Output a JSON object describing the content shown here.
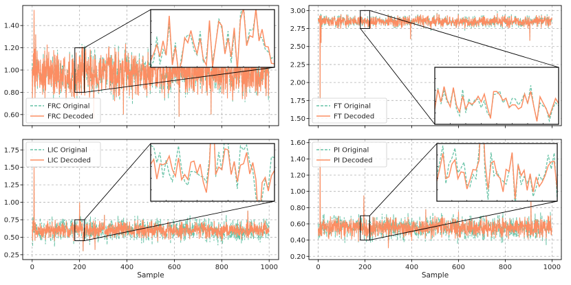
{
  "chart_data": [
    {
      "type": "line",
      "panel": "top-left",
      "xlabel": "",
      "ylabel": "",
      "xlim": [
        -40,
        1040
      ],
      "ylim": [
        0.5,
        1.58
      ],
      "yticks": [
        0.6,
        0.8,
        1.0,
        1.2,
        1.4
      ],
      "xticks": [
        0,
        200,
        400,
        600,
        800,
        1000
      ],
      "x_tick_labels_shown": false,
      "grid": true,
      "legend_position": "lower-left",
      "baseline": 0.97,
      "decoded_spread": 0.1,
      "original_spread": 0.06,
      "spikes": [
        [
          8,
          1.54
        ],
        [
          12,
          0.75
        ],
        [
          15,
          1.32
        ],
        [
          260,
          0.56
        ],
        [
          385,
          0.6
        ],
        [
          620,
          0.58
        ],
        [
          755,
          0.6
        ],
        [
          905,
          0.76
        ]
      ],
      "zoom_window": {
        "x": [
          180,
          220
        ],
        "y": [
          0.8,
          1.2
        ]
      },
      "inset_position": "upper-right",
      "series": [
        {
          "name": "FRC Original",
          "style": "dashed",
          "color": "#66c2a5"
        },
        {
          "name": "FRC Decoded",
          "style": "solid",
          "color": "#fc8d62"
        }
      ]
    },
    {
      "type": "line",
      "panel": "top-right",
      "xlabel": "",
      "ylabel": "",
      "xlim": [
        -40,
        1040
      ],
      "ylim": [
        1.4,
        3.07
      ],
      "yticks": [
        1.5,
        1.75,
        2.0,
        2.25,
        2.5,
        2.75,
        3.0
      ],
      "xticks": [
        0,
        200,
        400,
        600,
        800,
        1000
      ],
      "x_tick_labels_shown": false,
      "grid": true,
      "legend_position": "lower-left",
      "baseline": 2.85,
      "decoded_spread": 0.04,
      "original_spread": 0.03,
      "spikes": [
        [
          8,
          1.72
        ],
        [
          12,
          2.55
        ],
        [
          395,
          2.6
        ],
        [
          905,
          2.58
        ],
        [
          1000,
          2.5
        ]
      ],
      "zoom_window": {
        "x": [
          180,
          220
        ],
        "y": [
          2.75,
          3.0
        ]
      },
      "inset_position": "lower-right",
      "series": [
        {
          "name": "FT Original",
          "style": "dashed",
          "color": "#66c2a5"
        },
        {
          "name": "FT Decoded",
          "style": "solid",
          "color": "#fc8d62"
        }
      ]
    },
    {
      "type": "line",
      "panel": "bottom-left",
      "xlabel": "Sample",
      "ylabel": "",
      "xlim": [
        -40,
        1040
      ],
      "ylim": [
        0.18,
        1.9
      ],
      "yticks": [
        0.25,
        0.5,
        0.75,
        1.0,
        1.25,
        1.5,
        1.75
      ],
      "xticks": [
        0,
        200,
        400,
        600,
        800,
        1000
      ],
      "x_tick_labels_shown": true,
      "grid": true,
      "legend_position": "upper-left",
      "baseline": 0.6,
      "decoded_spread": 0.06,
      "original_spread": 0.1,
      "spikes": [
        [
          8,
          1.52
        ],
        [
          12,
          0.45
        ],
        [
          200,
          1.0
        ],
        [
          215,
          0.3
        ],
        [
          265,
          0.32
        ],
        [
          305,
          0.82
        ],
        [
          910,
          0.88
        ]
      ],
      "zoom_window": {
        "x": [
          180,
          220
        ],
        "y": [
          0.45,
          0.75
        ]
      },
      "inset_position": "upper-right",
      "series": [
        {
          "name": "LIC Original",
          "style": "dashed",
          "color": "#66c2a5"
        },
        {
          "name": "LIC Decoded",
          "style": "solid",
          "color": "#fc8d62"
        }
      ]
    },
    {
      "type": "line",
      "panel": "bottom-right",
      "xlabel": "Sample",
      "ylabel": "",
      "xlim": [
        -40,
        1040
      ],
      "ylim": [
        0.16,
        1.64
      ],
      "yticks": [
        0.2,
        0.4,
        0.6,
        0.8,
        1.0,
        1.2,
        1.4,
        1.6
      ],
      "xticks": [
        0,
        200,
        400,
        600,
        800,
        1000
      ],
      "x_tick_labels_shown": true,
      "grid": true,
      "legend_position": "upper-left",
      "baseline": 0.55,
      "decoded_spread": 0.06,
      "original_spread": 0.08,
      "spikes": [
        [
          8,
          1.55
        ],
        [
          12,
          0.45
        ],
        [
          195,
          0.95
        ],
        [
          300,
          0.3
        ],
        [
          460,
          0.78
        ],
        [
          600,
          0.75
        ],
        [
          910,
          0.9
        ]
      ],
      "zoom_window": {
        "x": [
          180,
          220
        ],
        "y": [
          0.4,
          0.7
        ]
      },
      "inset_position": "upper-right",
      "series": [
        {
          "name": "PI Original",
          "style": "dashed",
          "color": "#66c2a5"
        },
        {
          "name": "PI Decoded",
          "style": "solid",
          "color": "#fc8d62"
        }
      ]
    }
  ]
}
